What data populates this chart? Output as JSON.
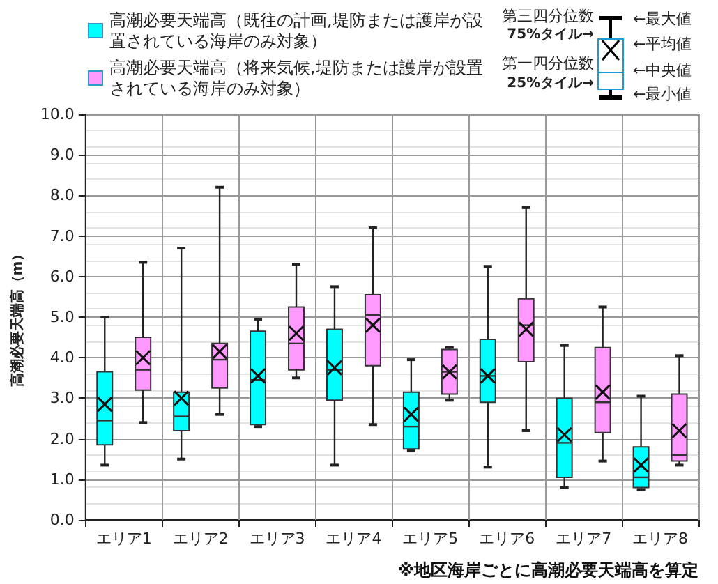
{
  "chart_data": {
    "type": "box",
    "ylabel": "高潮必要天端高（m）",
    "categories": [
      "エリア1",
      "エリア2",
      "エリア3",
      "エリア4",
      "エリア5",
      "エリア6",
      "エリア7",
      "エリア8"
    ],
    "series": [
      {
        "name": "高潮必要天端高（既往の計画,堤防または護岸が設置されている海岸のみ対象）",
        "color": "#00ffff",
        "boxes": [
          {
            "low": 1.35,
            "q1": 1.85,
            "median": 2.45,
            "q3": 3.65,
            "high": 5.0,
            "mean": 2.85
          },
          {
            "low": 1.5,
            "q1": 2.2,
            "median": 2.55,
            "q3": 3.15,
            "high": 6.7,
            "mean": 3.0
          },
          {
            "low": 2.3,
            "q1": 2.35,
            "median": 3.45,
            "q3": 4.65,
            "high": 4.95,
            "mean": 3.55
          },
          {
            "low": 1.35,
            "q1": 2.95,
            "median": 3.7,
            "q3": 4.7,
            "high": 5.75,
            "mean": 3.75
          },
          {
            "low": 1.7,
            "q1": 1.75,
            "median": 2.3,
            "q3": 3.15,
            "high": 3.95,
            "mean": 2.6
          },
          {
            "low": 1.3,
            "q1": 2.9,
            "median": 3.55,
            "q3": 4.45,
            "high": 6.25,
            "mean": 3.55
          },
          {
            "low": 0.8,
            "q1": 1.05,
            "median": 1.9,
            "q3": 3.0,
            "high": 4.3,
            "mean": 2.1
          },
          {
            "low": 0.75,
            "q1": 0.8,
            "median": 1.05,
            "q3": 1.8,
            "high": 3.05,
            "mean": 1.35
          }
        ]
      },
      {
        "name": "高潮必要天端高（将来気候,堤防または護岸が設置されている海岸のみ対象）",
        "color": "#ff99ff",
        "boxes": [
          {
            "low": 2.4,
            "q1": 3.2,
            "median": 3.7,
            "q3": 4.5,
            "high": 6.35,
            "mean": 4.0
          },
          {
            "low": 2.6,
            "q1": 3.25,
            "median": 3.95,
            "q3": 4.35,
            "high": 8.2,
            "mean": 4.15
          },
          {
            "low": 3.5,
            "q1": 3.7,
            "median": 4.35,
            "q3": 5.25,
            "high": 6.3,
            "mean": 4.6
          },
          {
            "low": 2.35,
            "q1": 3.8,
            "median": 5.05,
            "q3": 5.55,
            "high": 7.2,
            "mean": 4.8
          },
          {
            "low": 2.95,
            "q1": 3.1,
            "median": 3.65,
            "q3": 4.2,
            "high": 4.25,
            "mean": 3.65
          },
          {
            "low": 2.2,
            "q1": 3.9,
            "median": 4.8,
            "q3": 5.45,
            "high": 7.7,
            "mean": 4.7
          },
          {
            "low": 1.45,
            "q1": 2.15,
            "median": 2.9,
            "q3": 4.25,
            "high": 5.25,
            "mean": 3.15
          },
          {
            "low": 1.35,
            "q1": 1.45,
            "median": 1.6,
            "q3": 3.1,
            "high": 4.05,
            "mean": 2.2
          }
        ]
      }
    ],
    "ylim": [
      0,
      10
    ],
    "yticks": [
      {
        "value": 0,
        "label": "0.0"
      },
      {
        "value": 1,
        "label": "1.0"
      },
      {
        "value": 2,
        "label": "2.0"
      },
      {
        "value": 3,
        "label": "3.0"
      },
      {
        "value": 4,
        "label": "4.0"
      },
      {
        "value": 5,
        "label": "5.0"
      },
      {
        "value": 6,
        "label": "6.0"
      },
      {
        "value": 7,
        "label": "7.0"
      },
      {
        "value": 8,
        "label": "8.0"
      },
      {
        "value": 9,
        "label": "9.0"
      },
      {
        "value": 10,
        "label": "10.0"
      }
    ],
    "grid": true,
    "legend": "top left",
    "marker": "cross",
    "annotations": [
      "※地区海岸ごとに高潮必要天端高を算定",
      "第三四分位数",
      "75%タイル→",
      "第一四分位数",
      "25%タイル→",
      "←最大値",
      "←平均値",
      "←中央値",
      "←最小値"
    ]
  }
}
